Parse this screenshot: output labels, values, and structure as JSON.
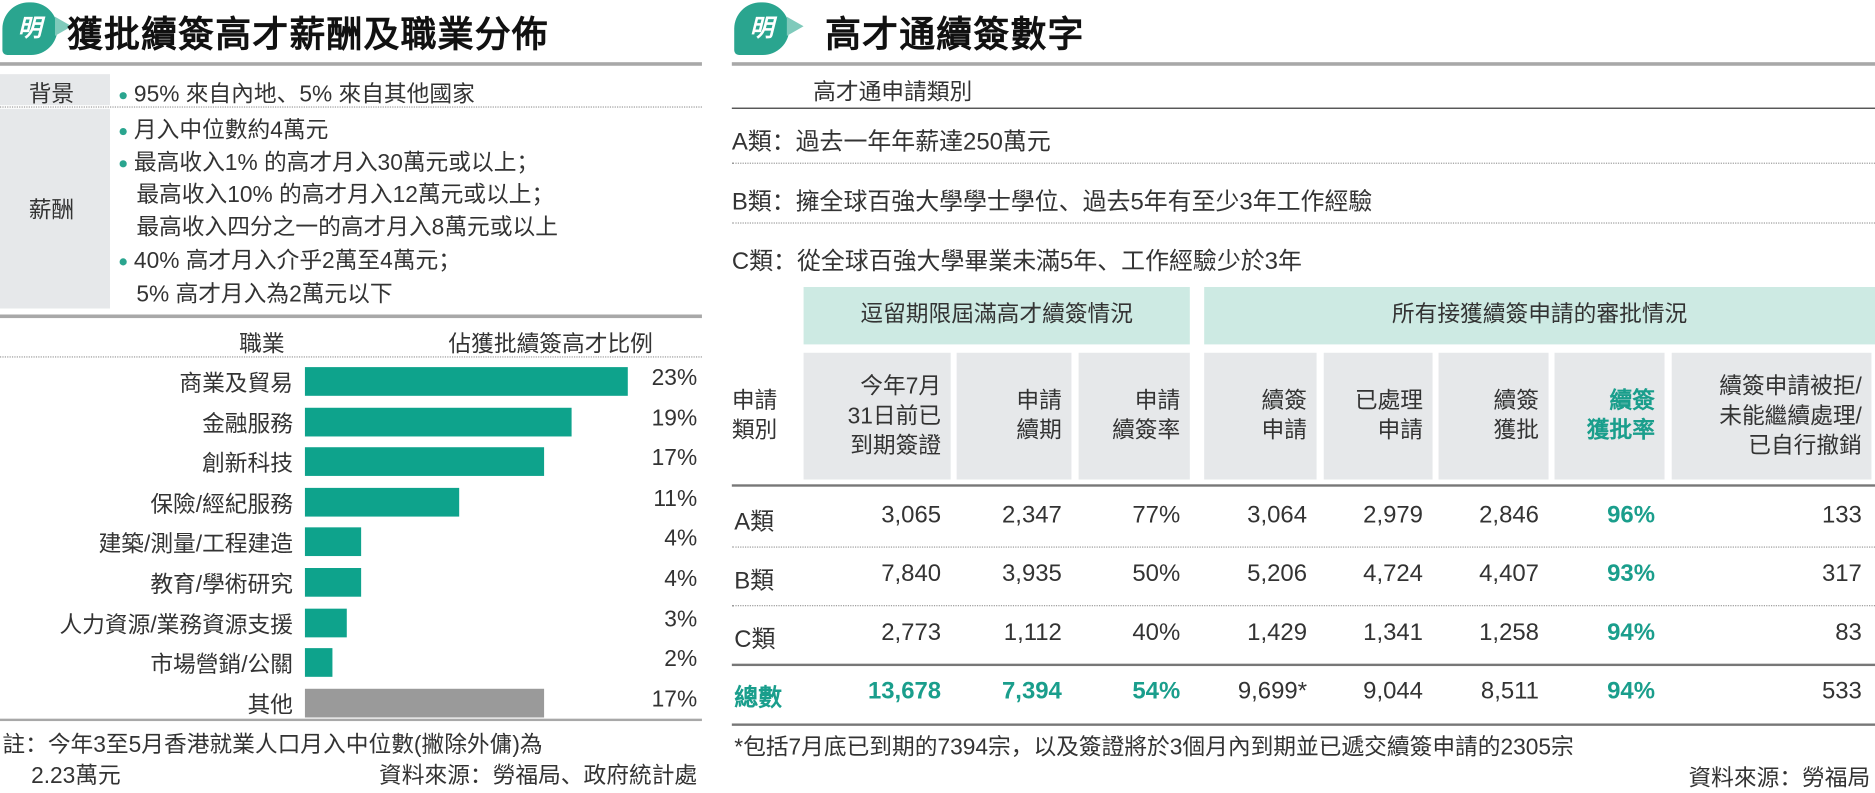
{
  "left": {
    "logo": "明",
    "title": "獲批續簽高才薪酬及職業分佈",
    "background_label": "背景",
    "background_items": [
      "95% 來自內地、5% 來自其他國家"
    ],
    "salary_label": "薪酬",
    "salary_items": [
      [
        "月入中位數約4萬元"
      ],
      [
        "最高收入1% 的高才月入30萬元或以上；",
        "最高收入10% 的高才月入12萬元或以上；",
        "最高收入四分之一的高才月入8萬元或以上"
      ],
      [
        "40% 高才月入介乎2萬至4萬元；",
        "5% 高才月入為2萬元以下"
      ]
    ],
    "footnote_line1": "註：今年3至5月香港就業人口月入中位數(撇除外傭)為",
    "footnote_line2": "2.23萬元",
    "source": "資料來源：勞福局、政府統計處"
  },
  "chart_data": {
    "type": "bar",
    "orientation": "horizontal",
    "xlabel": "職業",
    "ylabel": "佔獲批續簽高才比例",
    "categories": [
      "商業及貿易",
      "金融服務",
      "創新科技",
      "保險/經紀服務",
      "建築/測量/工程建造",
      "教育/學術研究",
      "人力資源/業務資源支援",
      "市場營銷/公關",
      "其他"
    ],
    "values": [
      23,
      19,
      17,
      11,
      4,
      4,
      3,
      2,
      17
    ],
    "value_labels": [
      "23%",
      "19%",
      "17%",
      "11%",
      "4%",
      "4%",
      "3%",
      "2%",
      "17%"
    ],
    "unit": "%",
    "colors": {
      "main": "#0ea38c",
      "other": "#9a9a9a"
    },
    "grid": false
  },
  "right": {
    "logo": "明",
    "title": "高才通續簽數字",
    "categories_heading": "高才通申請類別",
    "categories": [
      {
        "name": "A類：",
        "desc": "過去一年年薪達250萬元"
      },
      {
        "name": "B類：",
        "desc": "擁全球百強大學學士學位、過去5年有至少3年工作經驗"
      },
      {
        "name": "C類：",
        "desc": "從全球百強大學畢業未滿5年、工作經驗少於3年"
      }
    ],
    "table": {
      "group_headers": [
        "逗留期限屆滿高才續簽情況",
        "所有接獲續簽申請的審批情況"
      ],
      "columns": [
        "申請\n類別",
        "今年7月\n31日前已\n到期簽證",
        "申請\n續期",
        "申請\n續簽率",
        "續簽\n申請",
        "已處理\n申請",
        "續簽\n獲批",
        "續簽\n獲批率",
        "續簽申請被拒/\n未能繼續處理/\n已自行撤銷"
      ],
      "rows": [
        [
          "A類",
          "3,065",
          "2,347",
          "77%",
          "3,064",
          "2,979",
          "2,846",
          "96%",
          "133"
        ],
        [
          "B類",
          "7,840",
          "3,935",
          "50%",
          "5,206",
          "4,724",
          "4,407",
          "93%",
          "317"
        ],
        [
          "C類",
          "2,773",
          "1,112",
          "40%",
          "1,429",
          "1,341",
          "1,258",
          "94%",
          "83"
        ],
        [
          "總數",
          "13,678",
          "7,394",
          "54%",
          "9,699*",
          "9,044",
          "8,511",
          "94%",
          "533"
        ]
      ]
    },
    "footnote": "*包括7月底已到期的7394宗，以及簽證將於3個月內到期並已遞交續簽申請的2305宗",
    "source": "資料來源：勞福局",
    "accent_color": "#1a9e8c"
  }
}
